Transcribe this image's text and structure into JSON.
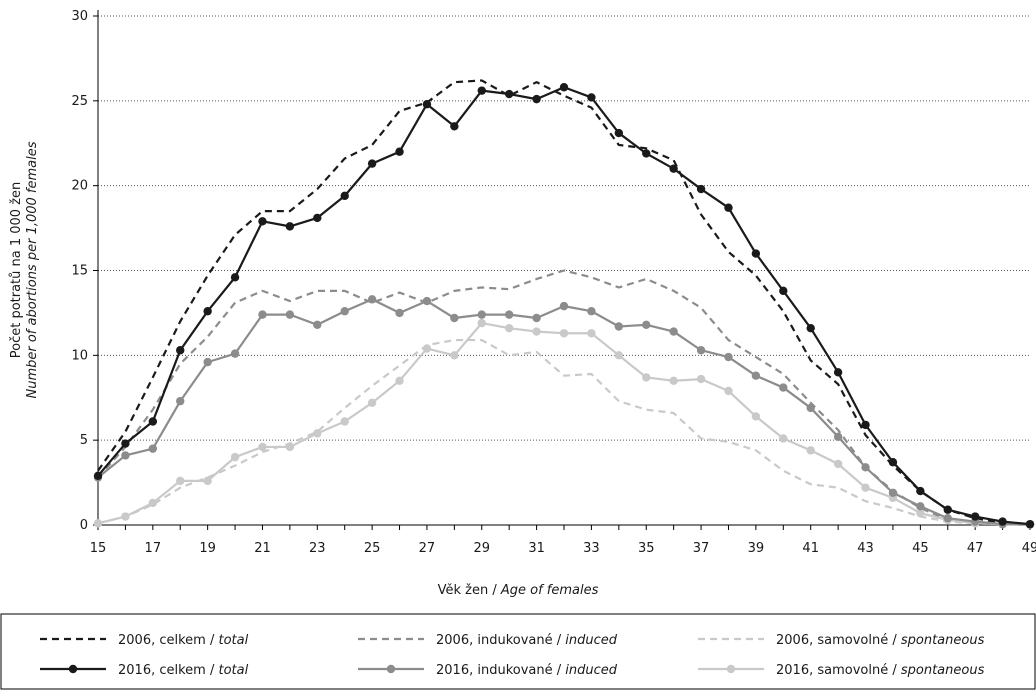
{
  "chart_data": {
    "type": "line",
    "xlabel": "Věk žen / ",
    "xlabel_en": "Age of females",
    "ylabel": "Počet potratů na 1 000 žen",
    "ylabel_en": "Number of abortions per 1,000 females",
    "x": [
      15,
      16,
      17,
      18,
      19,
      20,
      21,
      22,
      23,
      24,
      25,
      26,
      27,
      28,
      29,
      30,
      31,
      32,
      33,
      34,
      35,
      36,
      37,
      38,
      39,
      40,
      41,
      42,
      43,
      44,
      45,
      46,
      47,
      48,
      49
    ],
    "xticks": [
      "15",
      "17",
      "19",
      "21",
      "23",
      "25",
      "27",
      "29",
      "31",
      "33",
      "35",
      "37",
      "39",
      "41",
      "43",
      "45",
      "47",
      "49"
    ],
    "ylim": [
      0,
      30
    ],
    "yticks": [
      "0",
      "5",
      "10",
      "15",
      "20",
      "25",
      "30"
    ],
    "grid": "horizontal dotted",
    "legend_position": "bottom",
    "series": [
      {
        "name_cz": "2006, celkem / ",
        "name_en": "total",
        "color": "#1a1a1a",
        "style": "dashed",
        "markers": false,
        "values": [
          3.2,
          5.5,
          8.7,
          12.0,
          14.7,
          17.1,
          18.5,
          18.5,
          19.8,
          21.6,
          22.4,
          24.4,
          24.9,
          26.1,
          26.2,
          25.3,
          26.1,
          25.3,
          24.6,
          22.4,
          22.2,
          21.5,
          18.3,
          16.1,
          14.7,
          12.6,
          9.7,
          8.3,
          5.3,
          3.5,
          2.0,
          0.9,
          0.4,
          0.1,
          0.05
        ]
      },
      {
        "name_cz": "2016, celkem / ",
        "name_en": "total",
        "color": "#1a1a1a",
        "style": "solid",
        "markers": true,
        "values": [
          2.9,
          4.8,
          6.1,
          10.3,
          12.6,
          14.6,
          17.9,
          17.6,
          18.1,
          19.4,
          21.3,
          22.0,
          24.8,
          23.5,
          25.6,
          25.4,
          25.1,
          25.8,
          25.2,
          23.1,
          21.9,
          21.0,
          19.8,
          18.7,
          16.0,
          13.8,
          11.6,
          9.0,
          5.9,
          3.7,
          2.0,
          0.9,
          0.5,
          0.2,
          0.05
        ]
      },
      {
        "name_cz": "2006, indukované / ",
        "name_en": "induced",
        "color": "#8c8c8c",
        "style": "dashed",
        "markers": false,
        "values": [
          2.8,
          4.6,
          6.8,
          9.5,
          11.1,
          13.1,
          13.8,
          13.2,
          13.8,
          13.8,
          13.1,
          13.7,
          13.1,
          13.8,
          14.0,
          13.9,
          14.5,
          15.0,
          14.6,
          14.0,
          14.5,
          13.8,
          12.8,
          10.9,
          9.9,
          8.9,
          7.2,
          5.6,
          3.4,
          2.0,
          1.0,
          0.3,
          0.2,
          0.05,
          0.02
        ]
      },
      {
        "name_cz": "2016, indukované / ",
        "name_en": "induced",
        "color": "#8c8c8c",
        "style": "solid",
        "markers": true,
        "values": [
          2.8,
          4.1,
          4.5,
          7.3,
          9.6,
          10.1,
          12.4,
          12.4,
          11.8,
          12.6,
          13.3,
          12.5,
          13.2,
          12.2,
          12.4,
          12.4,
          12.2,
          12.9,
          12.6,
          11.7,
          11.8,
          11.4,
          10.3,
          9.9,
          8.8,
          8.1,
          6.9,
          5.2,
          3.4,
          1.9,
          1.1,
          0.4,
          0.2,
          0.05,
          0.02
        ]
      },
      {
        "name_cz": "2006, samovolné / ",
        "name_en": "spontaneous",
        "color": "#c9c9c9",
        "style": "dashed",
        "markers": false,
        "values": [
          0.1,
          0.5,
          1.2,
          2.2,
          2.8,
          3.5,
          4.3,
          4.8,
          5.5,
          6.9,
          8.2,
          9.4,
          10.6,
          10.9,
          10.9,
          10.0,
          10.2,
          8.8,
          8.9,
          7.3,
          6.8,
          6.6,
          5.1,
          4.9,
          4.4,
          3.2,
          2.4,
          2.2,
          1.4,
          1.0,
          0.5,
          0.2,
          0.1,
          0.05,
          0.02
        ]
      },
      {
        "name_cz": "2016, samovolné / ",
        "name_en": "spontaneous",
        "color": "#c9c9c9",
        "style": "solid",
        "markers": true,
        "values": [
          0.1,
          0.5,
          1.3,
          2.6,
          2.6,
          4.0,
          4.6,
          4.6,
          5.4,
          6.1,
          7.2,
          8.5,
          10.4,
          10.0,
          11.9,
          11.6,
          11.4,
          11.3,
          11.3,
          10.0,
          8.7,
          8.5,
          8.6,
          7.9,
          6.4,
          5.1,
          4.4,
          3.6,
          2.2,
          1.6,
          0.7,
          0.3,
          0.1,
          0.05,
          0.02
        ]
      }
    ]
  }
}
